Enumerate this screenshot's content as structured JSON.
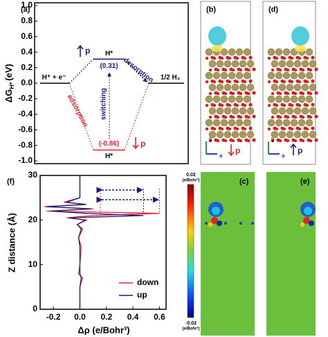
{
  "chart_data": [
    {
      "type": "energy-diagram",
      "panel_label": "(a)",
      "y_label": {
        "main": "ΔG",
        "sub": "H*",
        "unit": "(eV)"
      },
      "ylim": [
        -1.0,
        1.0
      ],
      "yticks": [
        {
          "value": 1.0,
          "label": "1.0"
        },
        0.8,
        0.6,
        0.4,
        0.2,
        {
          "value": 0.0,
          "label": "0.0"
        },
        -0.2,
        -0.4,
        -0.6,
        -0.8,
        {
          "value": -1.0,
          "label": "-1.0"
        }
      ],
      "levels": [
        {
          "label": "H⁺ + e⁻",
          "value": 0
        },
        {
          "label": "H*",
          "value": 0.31,
          "value_label": "(0.31)"
        },
        {
          "label": "H*",
          "value": -0.86,
          "value_label": "(-0.86)"
        },
        {
          "label": "1/2 H₂",
          "value": 0
        }
      ],
      "annotations": [
        "desorption",
        "switching",
        "adsorption"
      ],
      "polarization_labels": [
        "p",
        "p"
      ]
    },
    {
      "type": "line",
      "panel_label": "(f)",
      "x_label": "Δρ (e/Bohr³)",
      "y_label": "Z distance (Å)",
      "xlim": [
        -0.3,
        0.65
      ],
      "ylim": [
        0,
        30
      ],
      "xticks": [
        -0.2,
        {
          "value": 0.0,
          "label": "0.0"
        },
        0.2,
        0.4,
        0.6
      ],
      "yticks": [
        0,
        10,
        20,
        30
      ],
      "y": [
        0,
        5,
        7,
        8,
        10,
        14,
        16,
        18,
        19,
        20,
        20.5,
        21,
        21.5,
        22,
        22.5,
        23,
        23.5,
        24,
        25,
        30
      ],
      "series": [
        {
          "name": "down",
          "color": "#e8202a",
          "values": [
            0,
            0,
            0.02,
            -0.01,
            0,
            0.01,
            -0.01,
            0.02,
            -0.02,
            0.05,
            -0.1,
            0.1,
            0.6,
            -0.25,
            0.1,
            -0.27,
            0.05,
            -0.12,
            0,
            0
          ]
        },
        {
          "name": "up",
          "color": "#1a1a7a",
          "values": [
            0,
            0,
            0.01,
            0,
            0,
            0,
            -0.01,
            0.01,
            -0.02,
            0.04,
            -0.08,
            0.48,
            0.05,
            -0.22,
            0.08,
            -0.25,
            0.04,
            -0.1,
            0,
            0
          ]
        }
      ],
      "legend": "lower right"
    }
  ],
  "structures": [
    {
      "panel_label": "(b)",
      "axis_labels": [
        "b",
        "a"
      ],
      "polarization_label": "p"
    },
    {
      "panel_label": "(d)",
      "axis_labels": [
        "b",
        "a"
      ],
      "polarization_label": "p"
    }
  ],
  "maps": [
    {
      "panel_label": "(c)"
    },
    {
      "panel_label": "(e)"
    }
  ],
  "colorbar": {
    "max": 0.02,
    "min": -0.02,
    "unit": "(e/Bohr³)"
  }
}
